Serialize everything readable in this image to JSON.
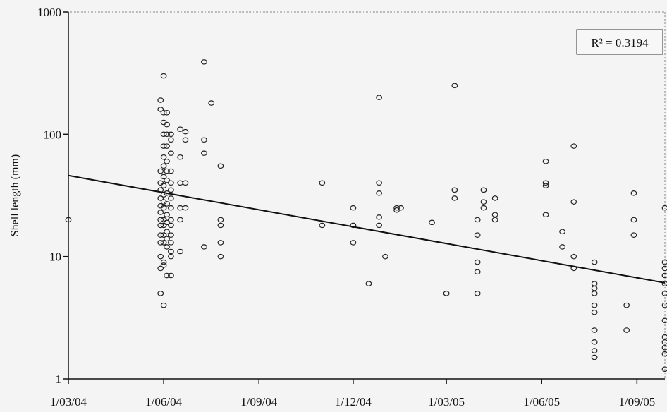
{
  "chart_data": {
    "type": "scatter",
    "title": "",
    "xlabel": "",
    "ylabel": "Shell length (mm)",
    "y_scale": "log",
    "ylim": [
      1,
      1000
    ],
    "xlim": [
      "2004-03-01",
      "2005-09-28"
    ],
    "x_ticks": [
      {
        "date": "2004-03-01",
        "label": "1/03/04"
      },
      {
        "date": "2004-06-01",
        "label": "1/06/04"
      },
      {
        "date": "2004-09-01",
        "label": "1/09/04"
      },
      {
        "date": "2004-12-01",
        "label": "1/12/04"
      },
      {
        "date": "2005-03-01",
        "label": "1/03/05"
      },
      {
        "date": "2005-06-01",
        "label": "1/06/05"
      },
      {
        "date": "2005-09-01",
        "label": "1/09/05"
      }
    ],
    "y_ticks": [
      {
        "value": 1,
        "label": "1"
      },
      {
        "value": 10,
        "label": "10"
      },
      {
        "value": 100,
        "label": "100"
      },
      {
        "value": 1000,
        "label": "1000"
      }
    ],
    "grid": false,
    "annotation": {
      "label": "R² = 0.3194",
      "position": "top-right"
    },
    "trendline": {
      "type": "exponential",
      "points": [
        [
          "2004-03-01",
          46
        ],
        [
          "2005-09-28",
          6.1
        ]
      ]
    },
    "points": [
      [
        "2004-03-01",
        20
      ],
      [
        "2004-05-29",
        5
      ],
      [
        "2004-05-29",
        8
      ],
      [
        "2004-05-29",
        10
      ],
      [
        "2004-05-29",
        13
      ],
      [
        "2004-05-29",
        15
      ],
      [
        "2004-05-29",
        18
      ],
      [
        "2004-05-29",
        20
      ],
      [
        "2004-05-29",
        23
      ],
      [
        "2004-05-29",
        26
      ],
      [
        "2004-05-29",
        30
      ],
      [
        "2004-05-29",
        35
      ],
      [
        "2004-05-29",
        40
      ],
      [
        "2004-05-29",
        50
      ],
      [
        "2004-05-29",
        160
      ],
      [
        "2004-05-29",
        190
      ],
      [
        "2004-06-01",
        4
      ],
      [
        "2004-06-01",
        8.5
      ],
      [
        "2004-06-01",
        9
      ],
      [
        "2004-06-01",
        13
      ],
      [
        "2004-06-01",
        15
      ],
      [
        "2004-06-01",
        18
      ],
      [
        "2004-06-01",
        20
      ],
      [
        "2004-06-01",
        25
      ],
      [
        "2004-06-01",
        28
      ],
      [
        "2004-06-01",
        32
      ],
      [
        "2004-06-01",
        38
      ],
      [
        "2004-06-01",
        45
      ],
      [
        "2004-06-01",
        55
      ],
      [
        "2004-06-01",
        65
      ],
      [
        "2004-06-01",
        80
      ],
      [
        "2004-06-01",
        100
      ],
      [
        "2004-06-01",
        125
      ],
      [
        "2004-06-01",
        150
      ],
      [
        "2004-06-01",
        300
      ],
      [
        "2004-06-04",
        7
      ],
      [
        "2004-06-04",
        12
      ],
      [
        "2004-06-04",
        14
      ],
      [
        "2004-06-04",
        16
      ],
      [
        "2004-06-04",
        19
      ],
      [
        "2004-06-04",
        22
      ],
      [
        "2004-06-04",
        27
      ],
      [
        "2004-06-04",
        33
      ],
      [
        "2004-06-04",
        42
      ],
      [
        "2004-06-04",
        50
      ],
      [
        "2004-06-04",
        60
      ],
      [
        "2004-06-04",
        80
      ],
      [
        "2004-06-04",
        100
      ],
      [
        "2004-06-04",
        120
      ],
      [
        "2004-06-04",
        150
      ],
      [
        "2004-06-08",
        7
      ],
      [
        "2004-06-08",
        10
      ],
      [
        "2004-06-08",
        11
      ],
      [
        "2004-06-08",
        13
      ],
      [
        "2004-06-08",
        15
      ],
      [
        "2004-06-08",
        18
      ],
      [
        "2004-06-08",
        20
      ],
      [
        "2004-06-08",
        25
      ],
      [
        "2004-06-08",
        30
      ],
      [
        "2004-06-08",
        35
      ],
      [
        "2004-06-08",
        40
      ],
      [
        "2004-06-08",
        50
      ],
      [
        "2004-06-08",
        70
      ],
      [
        "2004-06-08",
        90
      ],
      [
        "2004-06-08",
        100
      ],
      [
        "2004-06-17",
        11
      ],
      [
        "2004-06-17",
        20
      ],
      [
        "2004-06-17",
        25
      ],
      [
        "2004-06-17",
        40
      ],
      [
        "2004-06-17",
        65
      ],
      [
        "2004-06-17",
        110
      ],
      [
        "2004-06-22",
        25
      ],
      [
        "2004-06-22",
        40
      ],
      [
        "2004-06-22",
        90
      ],
      [
        "2004-06-22",
        105
      ],
      [
        "2004-07-10",
        12
      ],
      [
        "2004-07-10",
        70
      ],
      [
        "2004-07-10",
        90
      ],
      [
        "2004-07-10",
        390
      ],
      [
        "2004-07-17",
        180
      ],
      [
        "2004-07-26",
        10
      ],
      [
        "2004-07-26",
        13
      ],
      [
        "2004-07-26",
        18
      ],
      [
        "2004-07-26",
        20
      ],
      [
        "2004-07-26",
        55
      ],
      [
        "2004-11-01",
        18
      ],
      [
        "2004-11-01",
        40
      ],
      [
        "2004-12-01",
        13
      ],
      [
        "2004-12-01",
        18
      ],
      [
        "2004-12-01",
        25
      ],
      [
        "2004-12-16",
        6
      ],
      [
        "2004-12-26",
        18
      ],
      [
        "2004-12-26",
        21
      ],
      [
        "2004-12-26",
        33
      ],
      [
        "2004-12-26",
        40
      ],
      [
        "2004-12-26",
        200
      ],
      [
        "2005-01-01",
        10
      ],
      [
        "2005-01-12",
        24
      ],
      [
        "2005-01-12",
        25
      ],
      [
        "2005-01-16",
        25
      ],
      [
        "2005-02-15",
        19
      ],
      [
        "2005-03-01",
        5
      ],
      [
        "2005-03-09",
        30
      ],
      [
        "2005-03-09",
        35
      ],
      [
        "2005-03-09",
        250
      ],
      [
        "2005-03-31",
        5
      ],
      [
        "2005-03-31",
        7.5
      ],
      [
        "2005-03-31",
        9
      ],
      [
        "2005-03-31",
        15
      ],
      [
        "2005-03-31",
        20
      ],
      [
        "2005-04-06",
        25
      ],
      [
        "2005-04-06",
        28
      ],
      [
        "2005-04-06",
        35
      ],
      [
        "2005-04-17",
        20
      ],
      [
        "2005-04-17",
        22
      ],
      [
        "2005-04-17",
        30
      ],
      [
        "2005-06-05",
        22
      ],
      [
        "2005-06-05",
        38
      ],
      [
        "2005-06-05",
        40
      ],
      [
        "2005-06-05",
        60
      ],
      [
        "2005-06-21",
        12
      ],
      [
        "2005-06-21",
        16
      ],
      [
        "2005-07-02",
        8
      ],
      [
        "2005-07-02",
        10
      ],
      [
        "2005-07-02",
        28
      ],
      [
        "2005-07-02",
        80
      ],
      [
        "2005-07-22",
        1.5
      ],
      [
        "2005-07-22",
        1.7
      ],
      [
        "2005-07-22",
        2
      ],
      [
        "2005-07-22",
        2.5
      ],
      [
        "2005-07-22",
        3.5
      ],
      [
        "2005-07-22",
        4
      ],
      [
        "2005-07-22",
        5
      ],
      [
        "2005-07-22",
        5.5
      ],
      [
        "2005-07-22",
        6
      ],
      [
        "2005-07-22",
        9
      ],
      [
        "2005-08-22",
        2.5
      ],
      [
        "2005-08-22",
        4
      ],
      [
        "2005-08-29",
        15
      ],
      [
        "2005-08-29",
        20
      ],
      [
        "2005-08-29",
        33
      ],
      [
        "2005-09-28",
        1.2
      ],
      [
        "2005-09-28",
        1.6
      ],
      [
        "2005-09-28",
        1.8
      ],
      [
        "2005-09-28",
        2
      ],
      [
        "2005-09-28",
        2.2
      ],
      [
        "2005-09-28",
        3
      ],
      [
        "2005-09-28",
        4
      ],
      [
        "2005-09-28",
        5
      ],
      [
        "2005-09-28",
        6
      ],
      [
        "2005-09-28",
        7
      ],
      [
        "2005-09-28",
        8
      ],
      [
        "2005-09-28",
        9
      ],
      [
        "2005-09-28",
        25
      ]
    ]
  }
}
